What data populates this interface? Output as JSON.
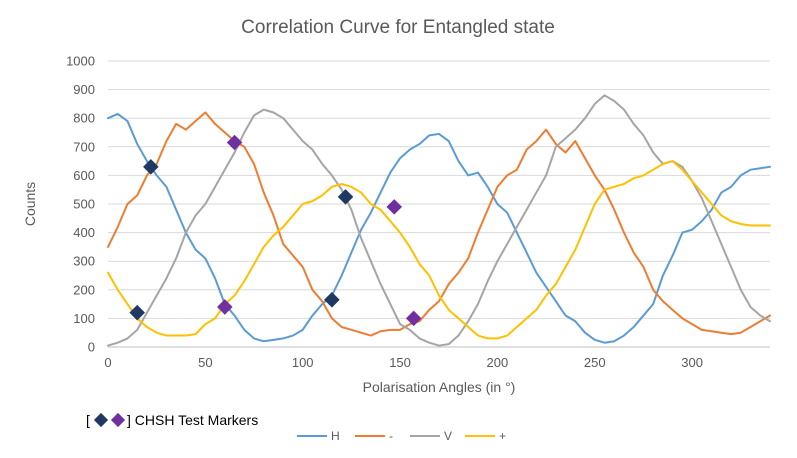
{
  "chart_data": {
    "type": "line",
    "title": "Correlation Curve for Entangled state",
    "xlabel": "Polarisation Angles (in °)",
    "ylabel": "Counts",
    "xlim": [
      0,
      340
    ],
    "ylim": [
      0,
      1000
    ],
    "xticks": [
      0,
      50,
      100,
      150,
      200,
      250,
      300
    ],
    "yticks": [
      0,
      100,
      200,
      300,
      400,
      500,
      600,
      700,
      800,
      900,
      1000
    ],
    "grid": "horizontal",
    "legend_position": "bottom",
    "x": [
      0,
      5,
      10,
      15,
      20,
      25,
      30,
      35,
      40,
      45,
      50,
      55,
      60,
      65,
      70,
      75,
      80,
      85,
      90,
      95,
      100,
      105,
      110,
      115,
      120,
      125,
      130,
      135,
      140,
      145,
      150,
      155,
      160,
      165,
      170,
      175,
      180,
      185,
      190,
      195,
      200,
      205,
      210,
      215,
      220,
      225,
      230,
      235,
      240,
      245,
      250,
      255,
      260,
      265,
      270,
      275,
      280,
      285,
      290,
      295,
      300,
      305,
      310,
      315,
      320,
      325,
      330,
      335,
      340
    ],
    "series": [
      {
        "name": "H",
        "color": "#5b9bd5",
        "values": [
          800,
          815,
          790,
          710,
          650,
          600,
          560,
          480,
          400,
          340,
          310,
          240,
          150,
          110,
          60,
          30,
          20,
          25,
          30,
          40,
          60,
          110,
          150,
          180,
          250,
          330,
          410,
          470,
          540,
          610,
          660,
          690,
          710,
          740,
          745,
          720,
          650,
          600,
          610,
          560,
          500,
          470,
          400,
          330,
          260,
          210,
          160,
          110,
          90,
          50,
          25,
          15,
          20,
          40,
          70,
          110,
          150,
          250,
          320,
          400,
          410,
          440,
          480,
          540,
          560,
          600,
          620,
          625,
          630
        ]
      },
      {
        "name": "-",
        "color": "#ed7d31",
        "values": [
          350,
          420,
          500,
          530,
          600,
          640,
          720,
          780,
          760,
          790,
          820,
          780,
          750,
          720,
          700,
          640,
          540,
          460,
          360,
          320,
          280,
          200,
          160,
          100,
          70,
          60,
          50,
          40,
          55,
          60,
          60,
          80,
          90,
          130,
          160,
          220,
          260,
          310,
          400,
          480,
          560,
          600,
          620,
          690,
          720,
          760,
          710,
          680,
          720,
          660,
          600,
          550,
          480,
          400,
          330,
          280,
          200,
          160,
          130,
          100,
          80,
          60,
          55,
          50,
          45,
          50,
          70,
          90,
          110
        ]
      },
      {
        "name": "V",
        "color": "#a5a5a5",
        "values": [
          5,
          15,
          30,
          60,
          120,
          180,
          240,
          310,
          400,
          460,
          500,
          560,
          620,
          680,
          750,
          810,
          830,
          820,
          800,
          760,
          720,
          690,
          640,
          600,
          550,
          480,
          380,
          300,
          220,
          150,
          80,
          60,
          30,
          15,
          5,
          10,
          40,
          90,
          150,
          230,
          300,
          360,
          420,
          480,
          540,
          600,
          700,
          730,
          760,
          800,
          850,
          880,
          860,
          830,
          780,
          740,
          680,
          640,
          650,
          630,
          580,
          520,
          440,
          360,
          280,
          200,
          140,
          110,
          90
        ]
      },
      {
        "name": "+",
        "color": "#ffc000",
        "values": [
          260,
          200,
          150,
          100,
          70,
          50,
          40,
          40,
          40,
          45,
          80,
          100,
          150,
          180,
          230,
          290,
          350,
          390,
          420,
          460,
          500,
          510,
          530,
          560,
          570,
          560,
          540,
          500,
          480,
          440,
          400,
          350,
          290,
          250,
          180,
          130,
          100,
          70,
          40,
          30,
          30,
          40,
          70,
          100,
          130,
          180,
          220,
          280,
          340,
          420,
          500,
          550,
          560,
          570,
          590,
          600,
          620,
          640,
          650,
          620,
          580,
          540,
          500,
          460,
          440,
          430,
          425,
          425,
          425
        ]
      },
      {
        "name": "Markers A",
        "role": "markers",
        "color": "#1f3864",
        "points": [
          [
            15,
            120
          ],
          [
            22,
            630
          ],
          [
            115,
            165
          ],
          [
            122,
            525
          ]
        ]
      },
      {
        "name": "Markers B",
        "role": "markers",
        "color": "#7030a0",
        "points": [
          [
            60,
            140
          ],
          [
            65,
            715
          ],
          [
            147,
            490
          ],
          [
            157,
            100
          ]
        ]
      }
    ],
    "annotation": {
      "text_open": "[",
      "text_close": "] CHSH Test Markers"
    }
  }
}
